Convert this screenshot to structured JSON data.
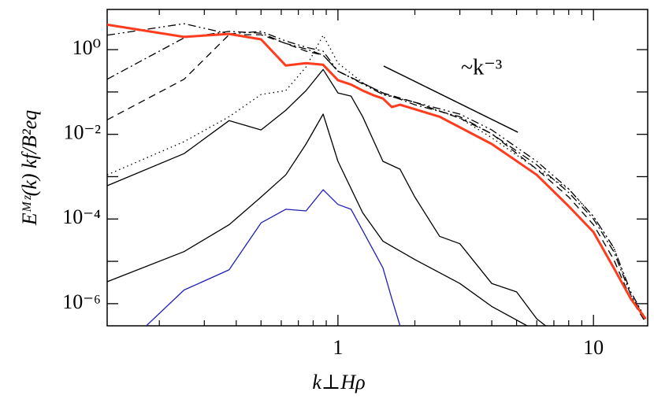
{
  "chart_data": {
    "type": "line",
    "xlabel": "k⊥Hρ",
    "ylabel": "Eᴹᶻ(k)  kf/B²eq",
    "xscale": "log",
    "yscale": "log",
    "xlim": [
      0.125,
      16.3
    ],
    "ylim": [
      3e-07,
      8.9
    ],
    "xticks": [
      1,
      10
    ],
    "xminorticks": [
      0.2,
      0.3,
      0.4,
      0.5,
      0.6,
      0.7,
      0.8,
      0.9,
      2,
      3,
      4,
      5,
      6,
      7,
      8,
      9
    ],
    "yticks": [
      {
        "value": 1,
        "label": "10⁰"
      },
      {
        "value": 0.01,
        "label": "10⁻²"
      },
      {
        "value": 0.0001,
        "label": "10⁻⁴"
      },
      {
        "value": 1e-06,
        "label": "10⁻⁶"
      }
    ],
    "yminorticks": [
      0.1,
      0.001,
      1e-05
    ],
    "annotation": {
      "text": "~k⁻³",
      "line": {
        "x": [
          1.51,
          5.06
        ],
        "y": [
          0.41,
          0.0112
        ]
      }
    },
    "series": [
      {
        "color": "#000000",
        "dash": "dashdotdot",
        "width": 1.3,
        "x": [
          0.125,
          0.25,
          0.375,
          0.5,
          0.625,
          0.75,
          0.875,
          1.0,
          1.5,
          2,
          3,
          4,
          6,
          8,
          10,
          12,
          14,
          16
        ],
        "values": [
          2.2,
          4.1,
          2.35,
          2.7,
          1.6,
          1.14,
          0.92,
          0.31,
          0.087,
          0.057,
          0.03,
          0.0127,
          0.0023,
          0.00051,
          0.000115,
          2.1e-05,
          1.9e-06,
          4.4e-07
        ]
      },
      {
        "color": "#000000",
        "dash": "dashdot",
        "width": 1.3,
        "x": [
          0.125,
          0.25,
          0.375,
          0.5,
          0.625,
          0.75,
          0.875,
          1.0,
          1.5,
          2,
          3,
          4,
          6,
          8,
          10,
          12,
          14,
          16
        ],
        "values": [
          0.2,
          1.9,
          2.7,
          2.45,
          1.4,
          1.04,
          0.74,
          0.31,
          0.095,
          0.05,
          0.026,
          0.0103,
          0.0019,
          0.00042,
          0.0001,
          1.7e-05,
          1.6e-06,
          4.4e-07
        ]
      },
      {
        "color": "#000000",
        "dash": "dashed",
        "width": 1.3,
        "x": [
          0.125,
          0.25,
          0.375,
          0.5,
          0.625,
          0.75,
          0.875,
          1.0,
          1.5,
          2,
          3,
          4,
          6,
          8,
          10,
          12,
          14,
          16
        ],
        "values": [
          0.022,
          0.2,
          2.25,
          2.25,
          1.4,
          0.92,
          0.74,
          0.31,
          0.095,
          0.057,
          0.024,
          0.0103,
          0.0015,
          0.00033,
          7.3e-05,
          1.1e-05,
          1.3e-06,
          3.6e-07
        ]
      },
      {
        "color": "#000000",
        "dash": "dotted",
        "width": 1.3,
        "x": [
          0.125,
          0.25,
          0.375,
          0.5,
          0.625,
          0.75,
          0.875,
          1.0,
          1.25,
          1.5,
          2,
          3,
          4,
          6,
          8,
          10,
          12,
          14,
          16
        ],
        "values": [
          0.0011,
          0.0067,
          0.026,
          0.087,
          0.108,
          0.39,
          2.2,
          0.48,
          0.166,
          0.087,
          0.057,
          0.024,
          0.0083,
          0.0015,
          0.00051,
          0.000115,
          2.1e-05,
          1.6e-06,
          3.6e-07
        ]
      },
      {
        "color": "#000000",
        "dash": "solid",
        "width": 1.3,
        "x": [
          0.125,
          0.25,
          0.375,
          0.5,
          0.625,
          0.75,
          0.875,
          1.0,
          1.125,
          1.25,
          1.5,
          1.75,
          2,
          2.5,
          3,
          4,
          5,
          6,
          6.5
        ],
        "values": [
          0.00061,
          0.0035,
          0.021,
          0.0127,
          0.037,
          0.108,
          0.34,
          0.095,
          0.08,
          0.026,
          0.0023,
          0.0015,
          0.00033,
          3.9e-05,
          2.6e-05,
          3e-06,
          1.9e-06,
          4.4e-07,
          3e-07
        ]
      },
      {
        "color": "#000000",
        "dash": "solid",
        "width": 1.3,
        "x": [
          0.125,
          0.25,
          0.375,
          0.5,
          0.625,
          0.75,
          0.875,
          1.0,
          1.25,
          1.5,
          2,
          3,
          4,
          5.5
        ],
        "values": [
          3.3e-06,
          1.7e-05,
          7.3e-05,
          0.00033,
          0.0011,
          0.0059,
          0.03,
          0.0023,
          0.00014,
          3e-05,
          1.1e-05,
          3e-06,
          8.6e-07,
          3e-07
        ]
      },
      {
        "color": "#1f1fb4",
        "dash": "solid",
        "width": 1.3,
        "x": [
          0.125,
          0.25,
          0.375,
          0.5,
          0.625,
          0.75,
          0.875,
          1.0,
          1.125,
          1.25,
          1.5,
          1.625,
          1.75
        ],
        "values": [
          4e-08,
          2.1e-06,
          6.3e-06,
          8.1e-05,
          0.00017,
          0.000155,
          0.00049,
          0.00022,
          0.00017,
          5.3e-05,
          7e-06,
          1.3e-06,
          3e-07
        ]
      },
      {
        "color": "#ff3c1e",
        "dash": "solid",
        "width": 3,
        "x": [
          0.125,
          0.25,
          0.375,
          0.5,
          0.625,
          0.75,
          0.875,
          1.0,
          1.125,
          1.25,
          1.375,
          1.5,
          1.625,
          1.75,
          2.5,
          4,
          6,
          8,
          10,
          12,
          14,
          16
        ],
        "values": [
          3.9,
          2.0,
          2.35,
          1.75,
          0.42,
          0.48,
          0.44,
          0.19,
          0.15,
          0.108,
          0.084,
          0.07,
          0.044,
          0.05,
          0.026,
          0.0059,
          0.0011,
          0.0002,
          4.9e-05,
          7e-06,
          1.3e-06,
          4.4e-07
        ]
      }
    ]
  }
}
